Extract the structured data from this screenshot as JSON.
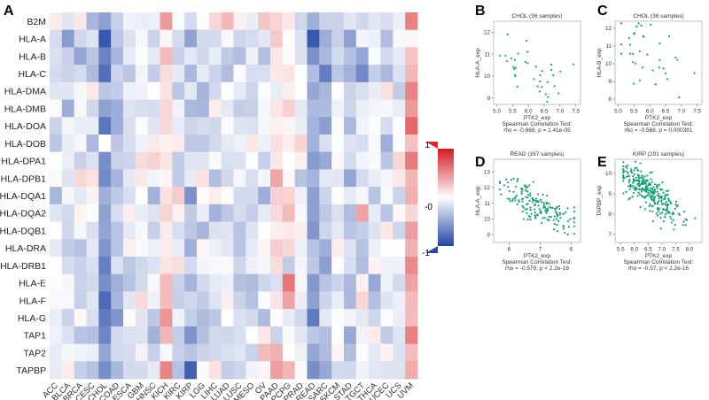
{
  "chart_data": [
    {
      "panel": "A",
      "type": "heatmap",
      "rows": [
        "B2M",
        "HLA-A",
        "HLA-B",
        "HLA-C",
        "HLA-DMA",
        "HLA-DMB",
        "HLA-DOA",
        "HLA-DOB",
        "HLA-DPA1",
        "HLA-DPB1",
        "HLA-DQA1",
        "HLA-DQA2",
        "HLA-DQB1",
        "HLA-DRA",
        "HLA-DRB1",
        "HLA-E",
        "HLA-F",
        "HLA-G",
        "TAP1",
        "TAP2",
        "TAPBP"
      ],
      "columns": [
        "ACC",
        "BLCA",
        "BRCA",
        "CESC",
        "CHOL",
        "COAD",
        "ESCA",
        "GBM",
        "HNSC",
        "KICH",
        "KIRC",
        "KIRP",
        "LGG",
        "LIHC",
        "LUAD",
        "LUSC",
        "MESO",
        "OV",
        "PAAD",
        "PCPG",
        "PRAD",
        "READ",
        "SARC",
        "SKCM",
        "STAD",
        "TGCT",
        "THCA",
        "UCEC",
        "UCS",
        "UVM"
      ],
      "legend": {
        "max_label": "1",
        "mid_label": "-0",
        "min_label": "-1",
        "range": [
          -1,
          1
        ]
      }
    },
    {
      "panel": "B",
      "type": "scatter",
      "title": "CHOL (36 samples)",
      "xlabel": "PTK2_exp",
      "ylabel": "HLA-A_exp",
      "stat_line1": "Spearman Correlation Test:",
      "stat_line2": "rho = -0.668, p = 1.41e-05",
      "xlim": [
        4.9,
        7.65
      ],
      "ylim": [
        8.7,
        12.5
      ],
      "xticks": [
        5.0,
        5.5,
        6.0,
        6.5,
        7.0,
        7.5
      ],
      "yticks": [
        9,
        10,
        11,
        12
      ],
      "n_points": 36,
      "seed": 11,
      "x_range": [
        5.1,
        7.5
      ],
      "x_center": 6.1,
      "y_at_center": 10.4,
      "slope": -1.1,
      "noise": 0.8
    },
    {
      "panel": "C",
      "type": "scatter",
      "title": "CHOL (36 samples)",
      "xlabel": "PTK2_exp",
      "ylabel": "HLA-B_exp",
      "stat_line1": "Spearman Correlation Test:",
      "stat_line2": "rho = -0.568, p = 0.000381",
      "xlim": [
        4.9,
        7.65
      ],
      "ylim": [
        7.7,
        12.4
      ],
      "xticks": [
        5.0,
        5.5,
        6.0,
        6.5,
        7.0,
        7.5
      ],
      "yticks": [
        8,
        9,
        10,
        11,
        12
      ],
      "n_points": 36,
      "seed": 23,
      "x_range": [
        5.1,
        7.5
      ],
      "x_center": 6.1,
      "y_at_center": 10.3,
      "slope": -1.0,
      "noise": 0.8
    },
    {
      "panel": "D",
      "type": "scatter",
      "title": "READ (167 samples)",
      "xlabel": "PTK2_exp",
      "ylabel": "HLA-A_exp",
      "stat_line1": "Spearman Correlation Test:",
      "stat_line2": "rho = -0.579, p < 2.2e-16",
      "xlim": [
        5.5,
        8.3
      ],
      "ylim": [
        8.5,
        13.8
      ],
      "xticks": [
        6,
        7,
        8
      ],
      "yticks": [
        9,
        10,
        11,
        12,
        13
      ],
      "n_points": 167,
      "seed": 37,
      "x_range": [
        5.7,
        8.1
      ],
      "x_center": 6.9,
      "y_at_center": 10.9,
      "slope": -0.95,
      "noise": 0.55
    },
    {
      "panel": "E",
      "type": "scatter",
      "title": "KIRP (291 samples)",
      "xlabel": "PTK2_exp",
      "ylabel": "TAPBP_exp",
      "stat_line1": "Spearman Correlation Test:",
      "stat_line2": "rho = -0.57, p < 2.2e-16",
      "xlim": [
        5.3,
        8.45
      ],
      "ylim": [
        6.6,
        10.7
      ],
      "xticks": [
        5.5,
        6.0,
        6.5,
        7.0,
        7.5,
        8.0
      ],
      "yticks": [
        7,
        8,
        9,
        10
      ],
      "n_points": 291,
      "seed": 53,
      "x_range": [
        5.6,
        8.2
      ],
      "x_center": 6.6,
      "y_at_center": 9.0,
      "slope": -1.0,
      "noise": 0.45
    }
  ],
  "colors": {
    "positive": "#d7191c",
    "neutral": "#ffffff",
    "negative": "#2145a6",
    "points": "#1aa070",
    "grid_line": "#b5b5b5"
  }
}
